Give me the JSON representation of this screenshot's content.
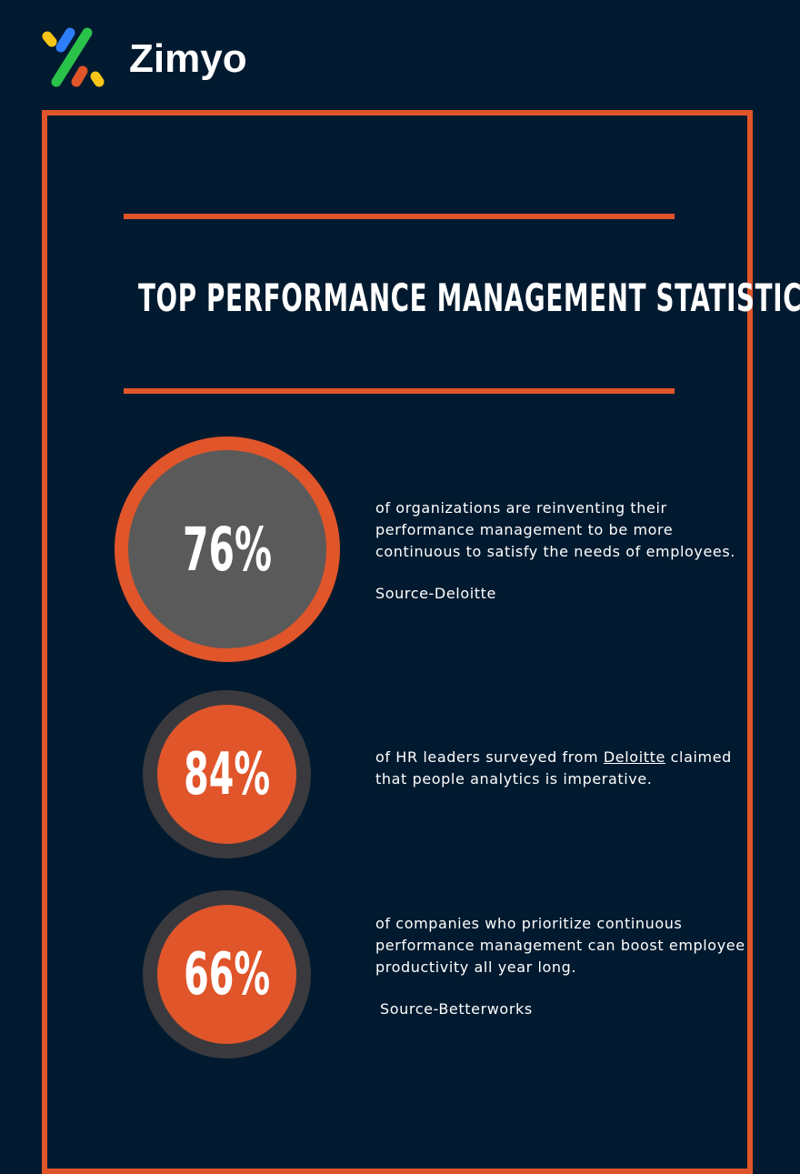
{
  "brand": {
    "name": "Zimyo"
  },
  "title": "TOP PERFORMANCE MANAGEMENT STATISTICS",
  "colors": {
    "accent": "#e0552a",
    "background": "#021a2f",
    "circle_gray": "#5a5a5a",
    "ring_dark": "#3a3a3e"
  },
  "stats": [
    {
      "percent": "76%",
      "text": "of organizations are reinventing their performance management to be more continuous to satisfy the needs of employees.",
      "source": "Source-Deloitte"
    },
    {
      "percent": "84%",
      "text_before": "of HR leaders surveyed from ",
      "link": "Deloitte",
      "text_after": " claimed that people analytics is imperative."
    },
    {
      "percent": "66%",
      "text": "of companies who prioritize continuous performance management can boost employee productivity all year long.",
      "source": "Source-Betterworks"
    }
  ]
}
